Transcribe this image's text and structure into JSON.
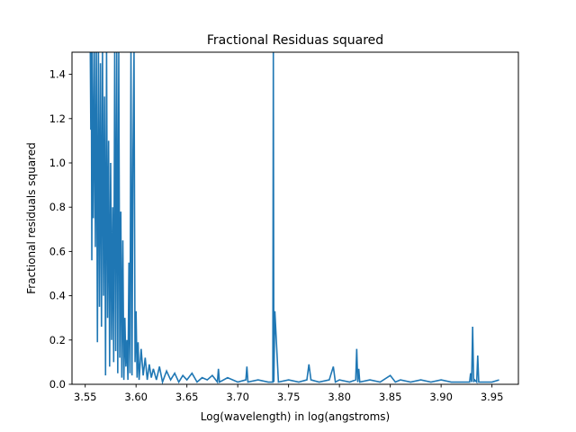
{
  "chart_data": {
    "type": "line",
    "title": "Fractional Residuas squared",
    "xlabel": "Log(wavelength) in log(angstroms)",
    "ylabel": "Fractional residuals squared",
    "xlim": [
      3.537,
      3.976
    ],
    "ylim": [
      0.0,
      1.5
    ],
    "x_ticks": [
      3.55,
      3.6,
      3.65,
      3.7,
      3.75,
      3.8,
      3.85,
      3.9,
      3.95
    ],
    "x_tick_labels": [
      "3.55",
      "3.60",
      "3.65",
      "3.70",
      "3.75",
      "3.80",
      "3.85",
      "3.90",
      "3.95"
    ],
    "y_ticks": [
      0.0,
      0.2,
      0.4,
      0.6,
      0.8,
      1.0,
      1.2,
      1.4
    ],
    "y_tick_labels": [
      "0.0",
      "0.2",
      "0.4",
      "0.6",
      "0.8",
      "1.0",
      "1.2",
      "1.4"
    ],
    "grid": false,
    "series": [
      {
        "color": "#1f77b4",
        "x": [
          3.555,
          3.5555,
          3.556,
          3.5565,
          3.557,
          3.558,
          3.559,
          3.56,
          3.561,
          3.562,
          3.563,
          3.564,
          3.565,
          3.566,
          3.567,
          3.568,
          3.569,
          3.57,
          3.571,
          3.572,
          3.573,
          3.574,
          3.575,
          3.576,
          3.577,
          3.578,
          3.579,
          3.58,
          3.581,
          3.582,
          3.583,
          3.584,
          3.585,
          3.586,
          3.587,
          3.588,
          3.589,
          3.59,
          3.591,
          3.592,
          3.593,
          3.594,
          3.595,
          3.596,
          3.597,
          3.598,
          3.599,
          3.6,
          3.601,
          3.602,
          3.603,
          3.605,
          3.607,
          3.609,
          3.611,
          3.613,
          3.615,
          3.617,
          3.62,
          3.623,
          3.626,
          3.63,
          3.634,
          3.638,
          3.642,
          3.646,
          3.65,
          3.655,
          3.66,
          3.665,
          3.67,
          3.675,
          3.68,
          3.681,
          3.682,
          3.69,
          3.7,
          3.708,
          3.709,
          3.71,
          3.72,
          3.73,
          3.7345,
          3.735,
          3.7355,
          3.7365,
          3.74,
          3.75,
          3.76,
          3.768,
          3.77,
          3.772,
          3.78,
          3.79,
          3.794,
          3.796,
          3.8,
          3.81,
          3.816,
          3.817,
          3.818,
          3.819,
          3.82,
          3.83,
          3.84,
          3.85,
          3.855,
          3.86,
          3.87,
          3.88,
          3.89,
          3.9,
          3.91,
          3.92,
          3.928,
          3.929,
          3.93,
          3.931,
          3.932,
          3.933,
          3.935,
          3.936,
          3.937,
          3.938,
          3.94,
          3.95,
          3.957
        ],
        "y": [
          1.5,
          1.15,
          1.5,
          0.56,
          1.5,
          0.75,
          1.5,
          0.62,
          1.5,
          0.19,
          1.5,
          0.35,
          1.45,
          0.26,
          1.5,
          0.4,
          1.3,
          0.04,
          1.5,
          0.3,
          1.1,
          0.08,
          1.0,
          0.2,
          0.8,
          0.1,
          1.5,
          0.15,
          1.5,
          0.05,
          1.5,
          0.12,
          0.78,
          0.03,
          0.65,
          0.02,
          0.3,
          0.08,
          0.2,
          0.02,
          0.55,
          0.05,
          1.5,
          0.04,
          1.05,
          1.5,
          0.1,
          0.33,
          0.03,
          0.19,
          0.02,
          0.16,
          0.04,
          0.12,
          0.02,
          0.09,
          0.03,
          0.07,
          0.02,
          0.08,
          0.01,
          0.06,
          0.02,
          0.05,
          0.01,
          0.04,
          0.02,
          0.05,
          0.01,
          0.03,
          0.02,
          0.04,
          0.01,
          0.07,
          0.01,
          0.03,
          0.01,
          0.02,
          0.08,
          0.01,
          0.02,
          0.01,
          0.01,
          1.5,
          0.01,
          0.33,
          0.01,
          0.02,
          0.01,
          0.02,
          0.09,
          0.02,
          0.01,
          0.02,
          0.08,
          0.01,
          0.02,
          0.01,
          0.02,
          0.16,
          0.01,
          0.07,
          0.01,
          0.02,
          0.01,
          0.04,
          0.01,
          0.02,
          0.01,
          0.02,
          0.01,
          0.02,
          0.01,
          0.01,
          0.01,
          0.05,
          0.01,
          0.26,
          0.01,
          0.02,
          0.01,
          0.13,
          0.01,
          0.01,
          0.01,
          0.01,
          0.02
        ]
      }
    ]
  }
}
